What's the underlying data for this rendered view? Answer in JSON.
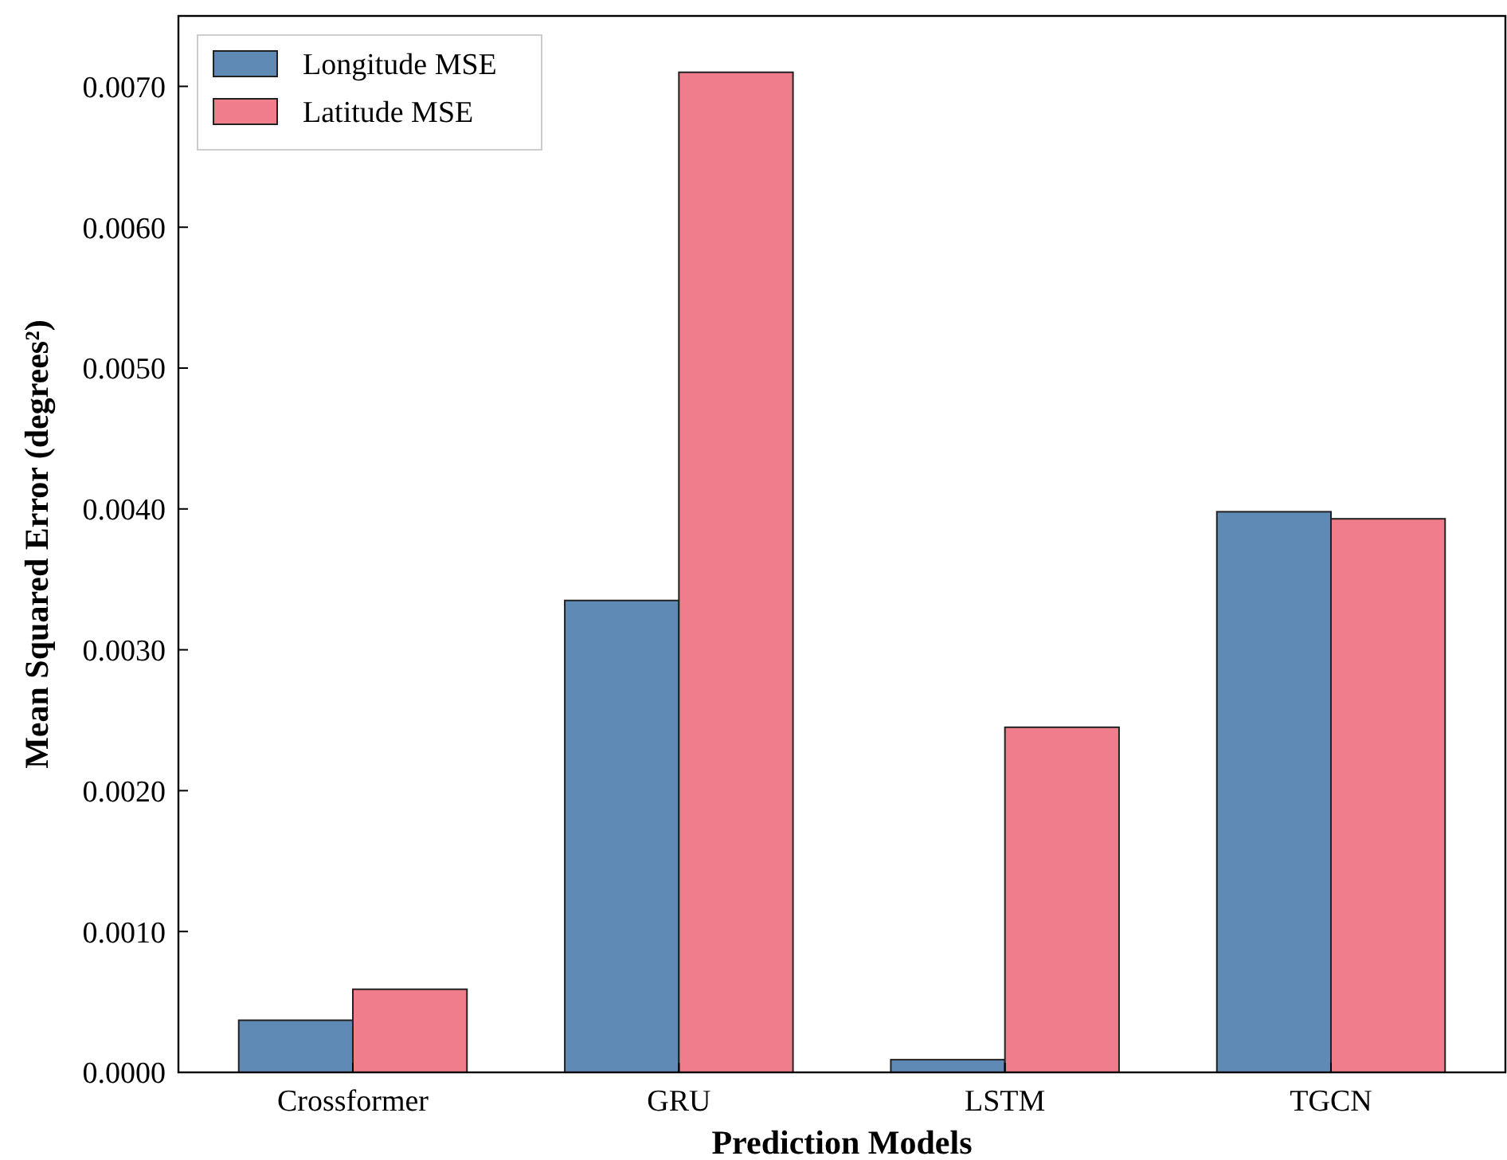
{
  "chart_data": {
    "type": "bar",
    "xlabel": "Prediction Models",
    "ylabel": "Mean Squared Error (degrees²)",
    "categories": [
      "Crossformer",
      "GRU",
      "LSTM",
      "TGCN"
    ],
    "series": [
      {
        "name": "Longitude MSE",
        "color": "#5f8ab5",
        "values": [
          0.00037,
          0.00335,
          9e-05,
          0.00398
        ]
      },
      {
        "name": "Latitude MSE",
        "color": "#f07d8b",
        "values": [
          0.00059,
          0.0071,
          0.00245,
          0.00393
        ]
      }
    ],
    "ylim": [
      0,
      0.0075
    ],
    "yticks": [
      {
        "value": 0,
        "label": "0.0000"
      },
      {
        "value": 0.001,
        "label": "0.0010"
      },
      {
        "value": 0.002,
        "label": "0.0020"
      },
      {
        "value": 0.003,
        "label": "0.0030"
      },
      {
        "value": 0.004,
        "label": "0.0040"
      },
      {
        "value": 0.005,
        "label": "0.0050"
      },
      {
        "value": 0.006,
        "label": "0.0060"
      },
      {
        "value": 0.007,
        "label": "0.0070"
      }
    ],
    "legend": "top left",
    "grid": false
  }
}
